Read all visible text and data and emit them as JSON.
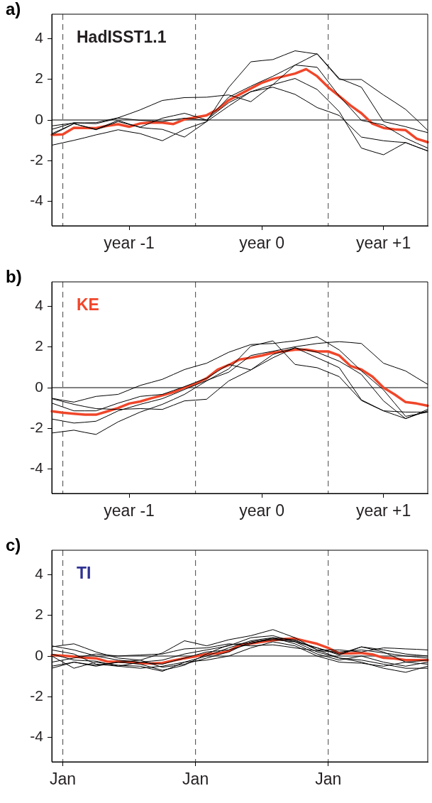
{
  "chart_data": [
    {
      "type": "line",
      "title": "a)",
      "annotations": [
        "HadISST1.1"
      ],
      "categories": [
        null,
        null,
        null,
        null,
        null,
        null,
        null,
        "year -1",
        null,
        null,
        null,
        null,
        null,
        null,
        null,
        null,
        null,
        null,
        null,
        "year 0",
        null,
        null,
        null,
        null,
        null,
        null,
        null,
        null,
        null,
        null,
        "year +1",
        null,
        null,
        null,
        null
      ],
      "ylim": [
        -5.2,
        5.2
      ],
      "yticks": [
        -4,
        -2,
        0,
        2,
        4
      ],
      "grid": "x",
      "marker": "none",
      "line_style": "solid",
      "ref_lines": [
        {
          "axis": "y",
          "value": 0,
          "color": "#000000",
          "line_style": "solid"
        }
      ],
      "series": [
        {
          "color": "#000000",
          "values": [
            -0.29,
            -0.22,
            -0.15,
            -0.14,
            -0.13,
            -0.01,
            0.11,
            0.3,
            0.5,
            0.73,
            0.96,
            1.03,
            1.1,
            1.11,
            1.12,
            1.18,
            1.23,
            1.07,
            0.9,
            1.32,
            1.74,
            2.22,
            2.7,
            2.98,
            3.26,
            2.65,
            2.04,
            1.83,
            1.61,
            0.77,
            -0.08,
            -0.2,
            -0.33,
            -0.48,
            -0.62
          ]
        },
        {
          "color": "#000000",
          "values": [
            -0.67,
            -0.43,
            -0.18,
            -0.32,
            -0.46,
            -0.24,
            -0.02,
            -0.2,
            -0.37,
            -0.42,
            -0.46,
            -0.65,
            -0.84,
            -0.46,
            -0.08,
            0.76,
            1.6,
            2.23,
            2.86,
            2.92,
            2.97,
            3.19,
            3.4,
            3.32,
            3.24,
            2.62,
            1.99,
            1.99,
            1.99,
            1.61,
            1.23,
            0.88,
            0.52,
            0.01,
            -0.51
          ]
        },
        {
          "color": "#000000",
          "values": [
            -1.24,
            -1.12,
            -1.0,
            -0.87,
            -0.73,
            -0.61,
            -0.48,
            -0.58,
            -0.67,
            -0.85,
            -1.02,
            -0.74,
            -0.46,
            -0.27,
            -0.08,
            0.3,
            0.68,
            1.04,
            1.39,
            1.57,
            1.74,
            1.89,
            2.04,
            1.77,
            1.5,
            0.96,
            0.41,
            -0.49,
            -1.38,
            -1.55,
            -1.71,
            -1.41,
            -1.11,
            -1.32,
            -1.52
          ]
        },
        {
          "color": "#000000",
          "values": [
            -0.73,
            -0.46,
            -0.18,
            -0.33,
            -0.48,
            -0.28,
            -0.08,
            -0.22,
            -0.35,
            -0.13,
            0.09,
            0.21,
            0.33,
            0.17,
            0,
            0.43,
            0.85,
            1.12,
            1.39,
            1.5,
            1.61,
            1.44,
            1.26,
            0.94,
            0.61,
            0.42,
            0.22,
            -0.31,
            -0.84,
            -0.93,
            -1.02,
            -1.07,
            -1.11,
            -1.32,
            -1.52
          ]
        },
        {
          "color": "#000000",
          "values": [
            -0.46,
            -0.3,
            -0.13,
            -0.16,
            -0.18,
            -0.05,
            0.09,
            0.04,
            -0.02,
            -0.05,
            -0.08,
            0.01,
            0.09,
            0.04,
            -0.02,
            0.55,
            1.12,
            1.39,
            1.66,
            1.91,
            2.15,
            2.43,
            2.7,
            2.65,
            2.59,
            1.88,
            1.17,
            0.58,
            -0.02,
            -0.13,
            -0.24,
            -0.57,
            -0.89,
            -1.14,
            -1.38
          ]
        },
        {
          "color": "#f0462a",
          "values": [
            -0.73,
            -0.71,
            -0.38,
            -0.39,
            -0.4,
            -0.29,
            -0.21,
            -0.33,
            -0.17,
            -0.12,
            -0.13,
            -0.2,
            0.03,
            0.13,
            0.23,
            0.52,
            0.97,
            1.26,
            1.55,
            1.83,
            2.02,
            2.15,
            2.28,
            2.5,
            2.15,
            1.61,
            1.17,
            0.72,
            0.33,
            -0.18,
            -0.39,
            -0.46,
            -0.5,
            -0.92,
            -1.09
          ]
        }
      ]
    },
    {
      "type": "line",
      "title": "b)",
      "annotations": [
        "KE"
      ],
      "categories": [
        null,
        null,
        null,
        null,
        null,
        null,
        null,
        "year -1",
        null,
        null,
        null,
        null,
        null,
        null,
        null,
        null,
        null,
        null,
        null,
        "year 0",
        null,
        null,
        null,
        null,
        null,
        null,
        null,
        null,
        null,
        null,
        "year +1",
        null,
        null,
        null,
        null
      ],
      "ylim": [
        -5.2,
        5.2
      ],
      "yticks": [
        -4,
        -2,
        0,
        2,
        4
      ],
      "grid": "x",
      "marker": "none",
      "line_style": "solid",
      "ref_lines": [
        {
          "axis": "y",
          "value": 0,
          "color": "#000000",
          "line_style": "solid"
        }
      ],
      "series": [
        {
          "color": "#000000",
          "values": [
            -0.52,
            -0.62,
            -0.71,
            -0.57,
            -0.43,
            -0.38,
            -0.33,
            -0.11,
            0.11,
            0.26,
            0.41,
            0.65,
            0.89,
            1.05,
            1.2,
            1.47,
            1.74,
            1.93,
            2.12,
            2.15,
            2.17,
            2.24,
            2.3,
            2.4,
            2.5,
            2.18,
            1.85,
            1.34,
            0.82,
            0.36,
            -0.11,
            -0.76,
            -1.41,
            -1.31,
            -1.2
          ]
        },
        {
          "color": "#000000",
          "values": [
            -2.23,
            -2.16,
            -2.09,
            -2.2,
            -2.3,
            -1.99,
            -1.68,
            -1.44,
            -1.2,
            -1.01,
            -0.82,
            -0.58,
            -0.33,
            0,
            0.33,
            0.63,
            0.92,
            1.48,
            2.04,
            2.17,
            2.3,
            1.72,
            1.14,
            1.06,
            0.98,
            0.76,
            0.54,
            -0.05,
            -0.63,
            -0.89,
            -1.14,
            -1.17,
            -1.2,
            -1.2,
            -1.2
          ]
        },
        {
          "color": "#000000",
          "values": [
            -0.76,
            -0.95,
            -1.14,
            -1.14,
            -1.14,
            -0.95,
            -0.76,
            -0.6,
            -0.43,
            -0.38,
            -0.33,
            -0.14,
            0.05,
            0.26,
            0.46,
            0.8,
            1.14,
            1.01,
            0.87,
            1.25,
            1.63,
            1.8,
            1.96,
            1.85,
            1.74,
            1.52,
            1.3,
            0.98,
            0.65,
            0,
            -0.65,
            -1.09,
            -1.52,
            -1.33,
            -1.14
          ]
        },
        {
          "color": "#000000",
          "values": [
            -1.54,
            -1.64,
            -1.74,
            -1.7,
            -1.65,
            -1.4,
            -1.14,
            -0.98,
            -0.82,
            -0.68,
            -0.54,
            -0.32,
            -0.09,
            0.13,
            0.35,
            0.56,
            0.76,
            1.17,
            1.58,
            1.69,
            1.79,
            1.9,
            2.01,
            2.09,
            2.17,
            2.22,
            2.26,
            2.22,
            2.17,
            1.69,
            1.2,
            1.01,
            0.82,
            0.49,
            0.16
          ]
        },
        {
          "color": "#000000",
          "values": [
            -0.54,
            -0.68,
            -0.82,
            -0.93,
            -1.03,
            -1.05,
            -1.07,
            -1.05,
            -1.03,
            -1.05,
            -1.07,
            -0.86,
            -0.65,
            -0.61,
            -0.57,
            -0.12,
            0.33,
            0.6,
            0.87,
            1.17,
            1.47,
            1.72,
            1.96,
            1.72,
            1.47,
            1.23,
            0.98,
            0.19,
            -0.6,
            -0.87,
            -1.14,
            -1.33,
            -1.52,
            -1.3,
            -1.07
          ]
        },
        {
          "color": "#f0462a",
          "values": [
            -1.16,
            -1.23,
            -1.28,
            -1.33,
            -1.33,
            -1.17,
            -1.0,
            -0.78,
            -0.68,
            -0.52,
            -0.38,
            -0.22,
            0,
            0.2,
            0.46,
            0.89,
            1.11,
            1.39,
            1.47,
            1.58,
            1.72,
            1.79,
            1.87,
            1.87,
            1.78,
            1.78,
            1.58,
            1.07,
            0.89,
            0.54,
            0,
            -0.33,
            -0.71,
            -0.78,
            -0.89
          ]
        }
      ]
    },
    {
      "type": "line",
      "title": "c)",
      "annotations": [
        "TI"
      ],
      "categories": [
        null,
        "Jan",
        null,
        null,
        null,
        null,
        null,
        null,
        null,
        null,
        null,
        null,
        null,
        "Jan",
        null,
        null,
        null,
        null,
        null,
        null,
        null,
        null,
        null,
        null,
        null,
        "Jan",
        null,
        null,
        null,
        null,
        null,
        null,
        null,
        null,
        null
      ],
      "ylim": [
        -5.2,
        5.2
      ],
      "yticks": [
        -4,
        -2,
        0,
        2,
        4
      ],
      "grid": "x",
      "marker": "none",
      "line_style": "solid",
      "ref_lines": [
        {
          "axis": "y",
          "value": 0,
          "color": "#000000",
          "line_style": "solid"
        }
      ],
      "series": [
        {
          "color": "#000000",
          "values": [
            0.45,
            0.53,
            0.6,
            0.4,
            0.2,
            0.05,
            -0.1,
            -0.15,
            -0.2,
            -0.03,
            0.15,
            0.45,
            0.75,
            0.63,
            0.5,
            0.65,
            0.8,
            0.9,
            1.0,
            1.15,
            1.3,
            1.1,
            0.9,
            0.6,
            0.3,
            0.3,
            0.3,
            0.25,
            0.2,
            0.3,
            0.4,
            0.38,
            0.35,
            0.33,
            0.3
          ]
        },
        {
          "color": "#000000",
          "values": [
            0.3,
            0.2,
            0.1,
            -0.15,
            -0.4,
            -0.45,
            -0.5,
            -0.4,
            -0.3,
            -0.25,
            -0.2,
            -0.05,
            0.1,
            0.2,
            0.3,
            0.4,
            0.5,
            0.7,
            0.9,
            0.95,
            1.0,
            0.85,
            0.7,
            0.55,
            0.4,
            0.25,
            0.1,
            0.28,
            0.45,
            0.33,
            0.2,
            -0.05,
            -0.3,
            -0.35,
            -0.4
          ]
        },
        {
          "color": "#000000",
          "values": [
            -0.5,
            -0.4,
            -0.3,
            -0.38,
            -0.45,
            -0.38,
            -0.3,
            -0.35,
            -0.4,
            -0.55,
            -0.7,
            -0.58,
            -0.45,
            -0.18,
            0.1,
            0.33,
            0.55,
            0.6,
            0.65,
            0.73,
            0.8,
            0.75,
            0.7,
            0.45,
            0.2,
            0.05,
            -0.1,
            -0.2,
            -0.3,
            -0.45,
            -0.6,
            -0.7,
            -0.8,
            -0.65,
            -0.5
          ]
        },
        {
          "color": "#000000",
          "values": [
            0.1,
            -0.05,
            -0.2,
            -0.23,
            -0.25,
            -0.38,
            -0.5,
            -0.55,
            -0.6,
            -0.55,
            -0.5,
            -0.4,
            -0.3,
            -0.15,
            0,
            0.2,
            0.4,
            0.58,
            0.75,
            0.83,
            0.9,
            0.75,
            0.6,
            0.35,
            0.1,
            -0.05,
            -0.2,
            -0.1,
            0,
            -0.15,
            -0.3,
            -0.4,
            -0.5,
            -0.4,
            -0.3
          ]
        },
        {
          "color": "#000000",
          "values": [
            -0.3,
            -0.2,
            -0.1,
            0,
            0.1,
            0.05,
            0,
            0.03,
            0.05,
            0.08,
            0.1,
            0.23,
            0.35,
            0.38,
            0.4,
            0.5,
            0.6,
            0.55,
            0.5,
            0.53,
            0.55,
            0.48,
            0.4,
            0.33,
            0.25,
            0.23,
            0.2,
            0.25,
            0.3,
            0.23,
            0.15,
            0.08,
            0,
            -0.05,
            -0.1
          ]
        },
        {
          "color": "#000000",
          "values": [
            0.5,
            0.4,
            0.3,
            0.15,
            0,
            -0.1,
            -0.2,
            -0.25,
            -0.3,
            -0.35,
            -0.4,
            -0.25,
            -0.1,
            0.05,
            0.2,
            0.25,
            0.3,
            0.45,
            0.6,
            0.75,
            0.9,
            0.85,
            0.8,
            0.55,
            0.3,
            0.1,
            -0.1,
            -0.15,
            -0.2,
            -0.3,
            -0.4,
            -0.5,
            -0.6,
            -0.6,
            -0.6
          ]
        },
        {
          "color": "#000000",
          "values": [
            0,
            -0.3,
            -0.6,
            -0.45,
            -0.3,
            -0.38,
            -0.45,
            -0.48,
            -0.5,
            -0.63,
            -0.75,
            -0.53,
            -0.3,
            -0.25,
            -0.2,
            -0.1,
            0,
            0.2,
            0.4,
            0.55,
            0.7,
            0.6,
            0.5,
            0.25,
            0,
            -0.15,
            -0.3,
            -0.33,
            -0.35,
            -0.43,
            -0.5,
            -0.4,
            -0.3,
            -0.25,
            -0.2
          ]
        },
        {
          "color": "#000000",
          "values": [
            -0.6,
            -0.45,
            -0.3,
            -0.4,
            -0.5,
            -0.4,
            -0.3,
            -0.25,
            -0.2,
            -0.38,
            -0.55,
            -0.48,
            -0.4,
            -0.25,
            -0.1,
            0.05,
            0.2,
            0.45,
            0.7,
            0.78,
            0.85,
            0.8,
            0.75,
            0.58,
            0.4,
            0.23,
            0.05,
            0.25,
            0.45,
            0.38,
            0.3,
            0.2,
            0.1,
            0.05,
            0
          ]
        },
        {
          "color": "#f0462a",
          "values": [
            0.04,
            0.02,
            -0.03,
            -0.09,
            -0.11,
            -0.27,
            -0.28,
            -0.3,
            -0.35,
            -0.37,
            -0.34,
            -0.22,
            -0.11,
            -0.02,
            0.1,
            0.13,
            0.24,
            0.54,
            0.61,
            0.7,
            0.78,
            0.84,
            0.86,
            0.73,
            0.6,
            0.4,
            0.13,
            0.13,
            0.15,
            0.08,
            -0.09,
            -0.12,
            -0.2,
            -0.2,
            -0.2
          ]
        }
      ]
    }
  ]
}
